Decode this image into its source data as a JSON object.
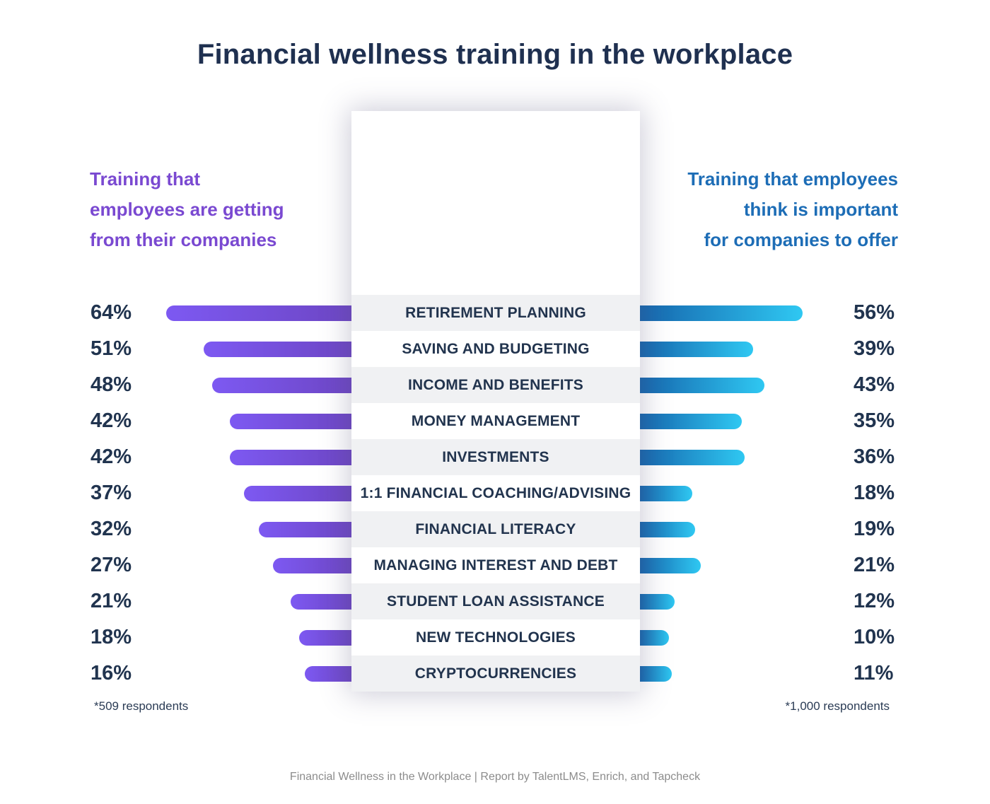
{
  "title": "Financial wellness training in the workplace",
  "headers": {
    "left": {
      "lines": [
        "Training that",
        "employees are getting",
        "from their companies"
      ]
    },
    "right": {
      "lines": [
        "Training that employees",
        "think is important",
        "for companies to offer"
      ]
    }
  },
  "footnotes": {
    "left": "*509 respondents",
    "right": "*1,000 respondents"
  },
  "footer": "Financial Wellness in the Workplace | Report by TalentLMS, Enrich, and Tapcheck",
  "colors": {
    "title_navy": "#1f3050",
    "value_navy": "#21344f",
    "category_navy": "#22344e",
    "purple_header": "#7a49d1",
    "blue_header": "#1d6db6",
    "stripe_gray": "#f0f1f3",
    "footer_gray": "#8c8c8c",
    "background": "#ffffff"
  },
  "chart_data": {
    "type": "bar",
    "variant": "diverging-butterfly",
    "unit": "%",
    "title": "Financial wellness training in the workplace",
    "categories": [
      "RETIREMENT PLANNING",
      "SAVING AND BUDGETING",
      "INCOME AND BENEFITS",
      "MONEY MANAGEMENT",
      "INVESTMENTS",
      "1:1 FINANCIAL COACHING/ADVISING",
      "FINANCIAL LITERACY",
      "MANAGING INTEREST AND DEBT",
      "STUDENT LOAN ASSISTANCE",
      "NEW TECHNOLOGIES",
      "CRYPTOCURRENCIES"
    ],
    "series": [
      {
        "name": "Training that employees are getting from their companies",
        "side": "left",
        "values": [
          64,
          51,
          48,
          42,
          42,
          37,
          32,
          27,
          21,
          18,
          16
        ],
        "gradient": [
          "#7d59f2",
          "#6d46c4"
        ],
        "respondents": "*509 respondents"
      },
      {
        "name": "Training that employees think is important for companies to offer",
        "side": "right",
        "values": [
          56,
          39,
          43,
          35,
          36,
          18,
          19,
          21,
          12,
          10,
          11
        ],
        "gradient": [
          "#1565ad",
          "#2fc8f2"
        ],
        "respondents": "*1,000 respondents"
      }
    ],
    "value_range": [
      0,
      64
    ],
    "grid": false,
    "legend_position": "top-left-and-top-right"
  }
}
